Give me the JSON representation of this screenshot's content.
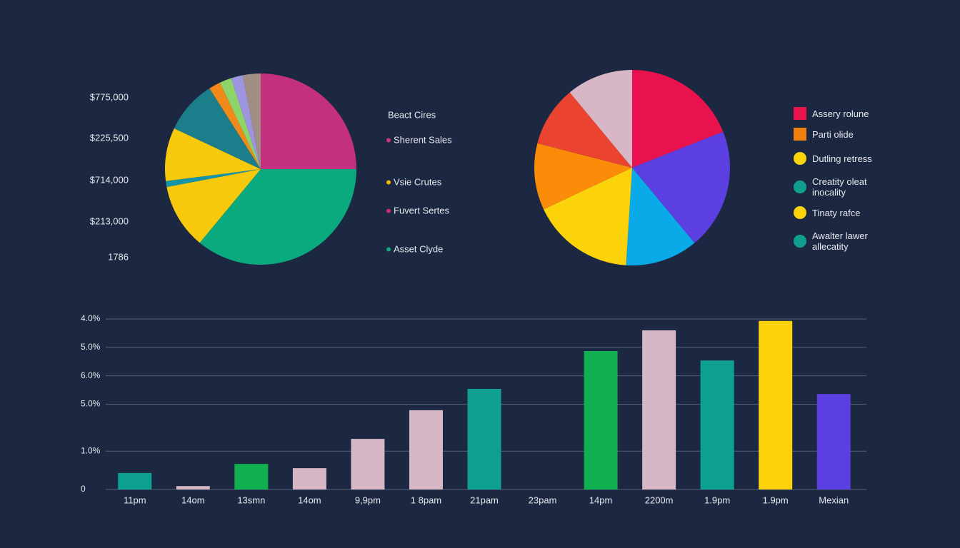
{
  "chart_data": [
    {
      "type": "pie",
      "side_labels": [
        "$775,000",
        "$225,500",
        "$714,000",
        "$213,000",
        "1786"
      ],
      "legend_title": "Beact Cires",
      "values": [
        25,
        36,
        11,
        1,
        9,
        9,
        2,
        2,
        2,
        3
      ],
      "colors": [
        "#c2307f",
        "#0aa97e",
        "#f7c90c",
        "#1595a5",
        "#f7c90c",
        "#1c7d8b",
        "#f08a1a",
        "#8fd46a",
        "#9e94e0",
        "#a08e85"
      ],
      "legend": [
        {
          "label": "Sherent Sales",
          "color": "#d0357a"
        },
        {
          "label": "Vsie Crutes",
          "color": "#f0b800"
        },
        {
          "label": "Fuvert Sertes",
          "color": "#d02a6a"
        },
        {
          "label": "Asset Clyde",
          "color": "#0aa97e"
        }
      ]
    },
    {
      "type": "pie",
      "values": [
        19,
        20,
        12,
        17,
        11,
        10,
        11
      ],
      "colors": [
        "#e8124e",
        "#5b3fe0",
        "#0aaae8",
        "#fcd20a",
        "#fb8c0a",
        "#ea4430",
        "#d7b7c6"
      ],
      "legend": [
        {
          "label": "Assery rolune",
          "color": "#e8124e",
          "shape": "square"
        },
        {
          "label": "Parti olide",
          "color": "#f08010",
          "shape": "square"
        },
        {
          "label": "Dutling retress",
          "color": "#fcd20a",
          "shape": "circle"
        },
        {
          "label": "Creatity oleat inocality",
          "color": "#0f9f8f",
          "shape": "circle"
        },
        {
          "label": "Tinaty rafce",
          "color": "#fcd20a",
          "shape": "circle"
        },
        {
          "label": "Awalter lawer allecatity",
          "color": "#0f9f8f",
          "shape": "circle"
        }
      ]
    },
    {
      "type": "bar",
      "categories": [
        "11pm",
        "14om",
        "13smn",
        "14om",
        "9,9pm",
        "1 8pam",
        "21pam",
        "23pam",
        "14pm",
        "2200m",
        "1.9pm",
        "1.9pm",
        "Mexian"
      ],
      "values": [
        0.58,
        0.12,
        0.9,
        0.75,
        1.78,
        2.79,
        3.54,
        null,
        4.87,
        5.6,
        4.54,
        5.93,
        3.36
      ],
      "colors": [
        "#0ea091",
        "#d7b7c6",
        "#10b050",
        "#d7b7c6",
        "#d7b7c6",
        "#d7b7c6",
        "#0ea091",
        "#0ea091",
        "#10b050",
        "#d7b7c6",
        "#0ea091",
        "#fcd20a",
        "#5b3fe0"
      ],
      "ylim": [
        0,
        6
      ],
      "yticks": [
        0,
        {
          "value": 1.35,
          "label": "1.0%"
        },
        {
          "value": 3,
          "label": "5.0%"
        },
        {
          "value": 4,
          "label": "6.0%"
        },
        {
          "value": 5,
          "label": "5.0%"
        },
        {
          "value": 6,
          "label": "4.0%"
        }
      ],
      "grid": true
    }
  ]
}
